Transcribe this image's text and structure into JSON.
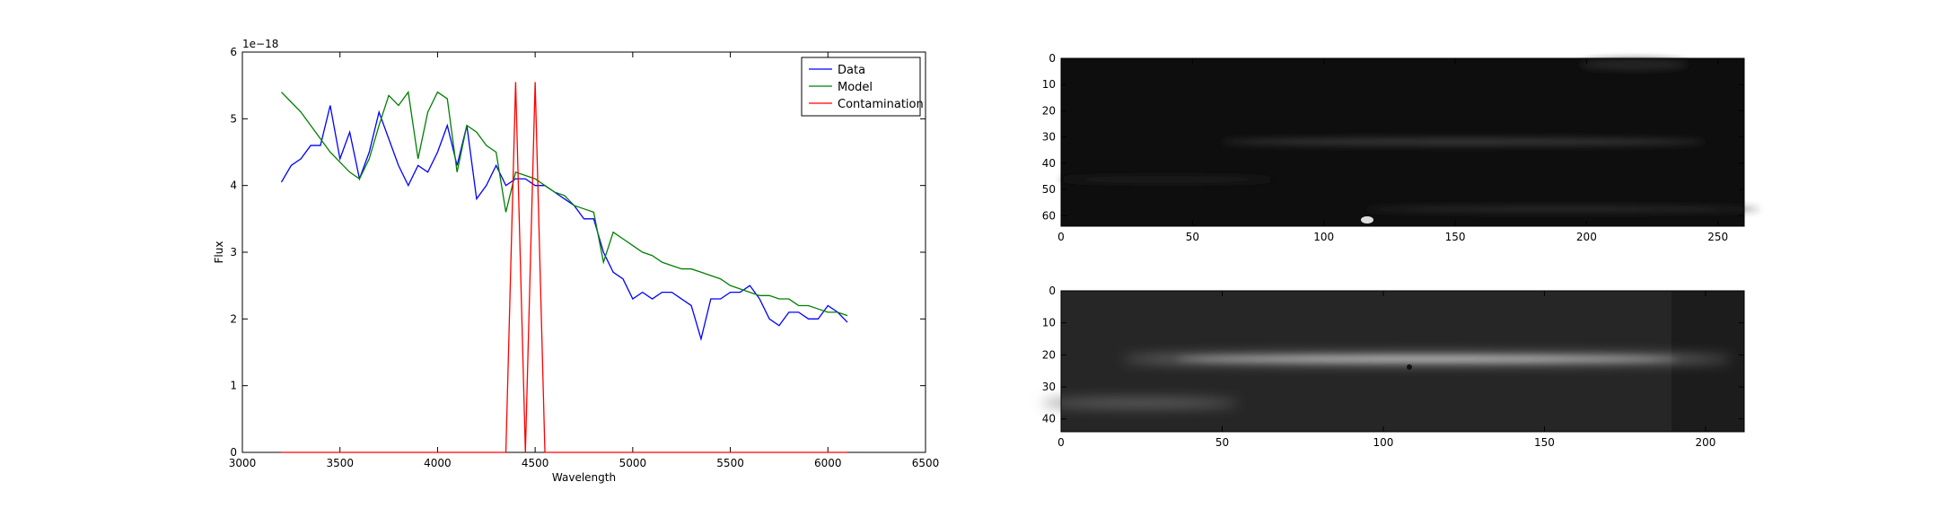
{
  "chart_data": [
    {
      "type": "line",
      "xlabel": "Wavelength",
      "ylabel": "Flux",
      "offset_text": "1e−18",
      "x": [
        3200,
        3250,
        3300,
        3350,
        3400,
        3450,
        3500,
        3550,
        3600,
        3650,
        3700,
        3750,
        3800,
        3850,
        3900,
        3950,
        4000,
        4050,
        4100,
        4150,
        4200,
        4250,
        4300,
        4350,
        4400,
        4450,
        4500,
        4550,
        4600,
        4650,
        4700,
        4750,
        4800,
        4850,
        4900,
        4950,
        5000,
        5050,
        5100,
        5150,
        5200,
        5250,
        5300,
        5350,
        5400,
        5450,
        5500,
        5550,
        5600,
        5650,
        5700,
        5750,
        5800,
        5850,
        5900,
        5950,
        6000,
        6050,
        6100
      ],
      "series": [
        {
          "name": "Data",
          "color": "#0000ff",
          "values": [
            4.05,
            4.3,
            4.4,
            4.6,
            4.6,
            5.2,
            4.4,
            4.8,
            4.1,
            4.5,
            5.1,
            4.7,
            4.3,
            4.0,
            4.3,
            4.2,
            4.5,
            4.9,
            4.3,
            4.9,
            3.8,
            4.0,
            4.3,
            4.0,
            4.1,
            4.1,
            4.0,
            4.0,
            3.9,
            3.8,
            3.7,
            3.5,
            3.5,
            3.0,
            2.7,
            2.6,
            2.3,
            2.4,
            2.3,
            2.4,
            2.4,
            2.3,
            2.2,
            1.7,
            2.3,
            2.3,
            2.4,
            2.4,
            2.5,
            2.3,
            2.0,
            1.9,
            2.1,
            2.1,
            2.0,
            2.0,
            2.2,
            2.1,
            1.95
          ]
        },
        {
          "name": "Model",
          "color": "#008000",
          "values": [
            5.4,
            5.25,
            5.1,
            4.9,
            4.7,
            4.5,
            4.35,
            4.2,
            4.1,
            4.4,
            4.9,
            5.35,
            5.2,
            5.4,
            4.4,
            5.1,
            5.4,
            5.3,
            4.2,
            4.9,
            4.8,
            4.6,
            4.5,
            3.6,
            4.2,
            4.15,
            4.1,
            4.0,
            3.9,
            3.85,
            3.7,
            3.65,
            3.6,
            2.85,
            3.3,
            3.2,
            3.1,
            3.0,
            2.95,
            2.85,
            2.8,
            2.75,
            2.75,
            2.7,
            2.65,
            2.6,
            2.5,
            2.45,
            2.4,
            2.35,
            2.35,
            2.3,
            2.3,
            2.2,
            2.2,
            2.15,
            2.1,
            2.1,
            2.05
          ]
        },
        {
          "name": "Contamination",
          "color": "#ff0000",
          "values": [
            0,
            0,
            0,
            0,
            0,
            0,
            0,
            0,
            0,
            0,
            0,
            0,
            0,
            0,
            0,
            0,
            0,
            0,
            0,
            0,
            0,
            0,
            0,
            0,
            5.55,
            0,
            5.55,
            0,
            0,
            0,
            0,
            0,
            0,
            0,
            0,
            0,
            0,
            0,
            0,
            0,
            0,
            0,
            0,
            0,
            0,
            0,
            0,
            0,
            0,
            0,
            0,
            0,
            0,
            0,
            0,
            0,
            0,
            0,
            0
          ]
        }
      ],
      "xlim": [
        3000,
        6500
      ],
      "xticks": [
        3000,
        3500,
        4000,
        4500,
        5000,
        5500,
        6000,
        6500
      ],
      "ylim": [
        0,
        6
      ],
      "yticks": [
        0,
        1,
        2,
        3,
        4,
        5,
        6
      ],
      "legend": "upper right"
    },
    {
      "type": "image",
      "xlim": [
        0,
        260
      ],
      "xticks": [
        0,
        50,
        100,
        150,
        200,
        250
      ],
      "ylim": [
        64,
        0
      ],
      "yticks": [
        0,
        10,
        20,
        30,
        40,
        50,
        60
      ]
    },
    {
      "type": "image",
      "xlim": [
        0,
        212
      ],
      "xticks": [
        0,
        50,
        100,
        150,
        200
      ],
      "ylim": [
        44,
        0
      ],
      "yticks": [
        0,
        10,
        20,
        30,
        40
      ]
    }
  ]
}
